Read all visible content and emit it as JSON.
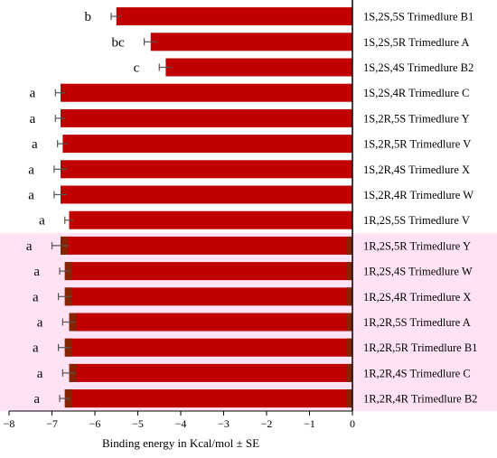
{
  "chart_data": {
    "type": "bar",
    "orientation": "horizontal",
    "xlabel": "Binding energy in Kcal/mol ± SE",
    "xlim": [
      -8,
      0
    ],
    "xticks": [
      "−8",
      "−7",
      "−6",
      "−5",
      "−4",
      "−3",
      "−2",
      "−1",
      "0"
    ],
    "grid": false,
    "categories": [
      "1S,2S,5S Trimedlure B1",
      "1S,2S,5R Trimedlure A",
      "1S,2S,4S Trimedlure B2",
      "1S,2S,4R Trimedlure C",
      "1S,2R,5S Trimedlure Y",
      "1S,2R,5R Trimedlure V",
      "1S,2R,4S Trimedlure X",
      "1S,2R,4R Trimedlure W",
      "1R,2S,5S Trimedlure V",
      "1R,2S,5R Trimedlure Y",
      "1R,2S,4S Trimedlure W",
      "1R,2S,4R Trimedlure X",
      "1R,2R,5S Trimedlure A",
      "1R,2R,5R Trimedlure B1",
      "1R,2R,4S Trimedlure C",
      "1R,2R,4R Trimedlure B2"
    ],
    "values": [
      -5.5,
      -4.7,
      -4.35,
      -6.8,
      -6.8,
      -6.75,
      -6.8,
      -6.8,
      -6.6,
      -6.8,
      -6.7,
      -6.7,
      -6.6,
      -6.7,
      -6.6,
      -6.7
    ],
    "errors": [
      0.12,
      0.15,
      0.15,
      0.12,
      0.12,
      0.12,
      0.15,
      0.15,
      0.1,
      0.2,
      0.12,
      0.15,
      0.15,
      0.15,
      0.15,
      0.12
    ],
    "significance": [
      "b",
      "bc",
      "c",
      "a",
      "a",
      "a",
      "a",
      "a",
      "a",
      "a",
      "a",
      "a",
      "a",
      "a",
      "a",
      "a"
    ],
    "highlighted": [
      false,
      false,
      false,
      false,
      false,
      false,
      false,
      false,
      false,
      true,
      true,
      true,
      true,
      true,
      true,
      true
    ],
    "colors": {
      "bar": "#c00000",
      "bar_overlay": "#7a2a00",
      "highlight": "#ffe3f5",
      "error_bar": "#555555",
      "axis": "#000000"
    }
  }
}
